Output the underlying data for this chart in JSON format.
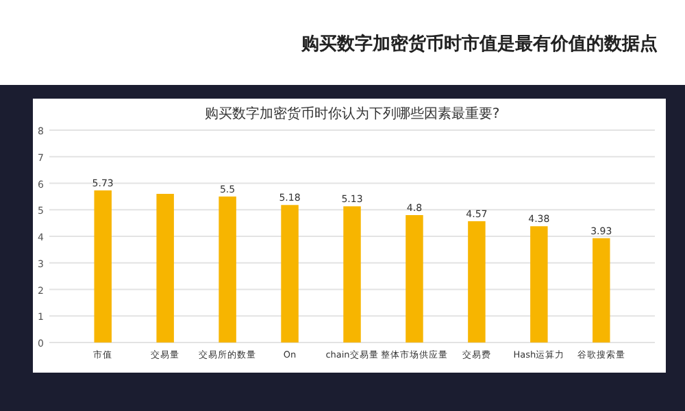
{
  "chart_data": {
    "type": "bar",
    "title": "购买数字加密货币时市值是最有价值的数据点",
    "subtitle": "购买数字加密货币时你认为下列哪些因素最重要?",
    "categories": [
      "市值",
      "交易量",
      "交易所的数量",
      "On",
      "chain交易量",
      "整体市场供应量",
      "交易费",
      "Hash运算力",
      "谷歌搜索量"
    ],
    "values": [
      5.73,
      5.6,
      5.5,
      5.18,
      5.13,
      4.8,
      4.57,
      4.38,
      3.93
    ],
    "value_labels": [
      "5.73",
      null,
      "5.5",
      "5.18",
      "5.13",
      "4.8",
      "4.57",
      "4.38",
      "3.93"
    ],
    "color": "#f7b500",
    "ylim": [
      0,
      8
    ],
    "yticks": [
      0,
      1,
      2,
      3,
      4,
      5,
      6,
      7,
      8
    ],
    "grid": "y"
  }
}
